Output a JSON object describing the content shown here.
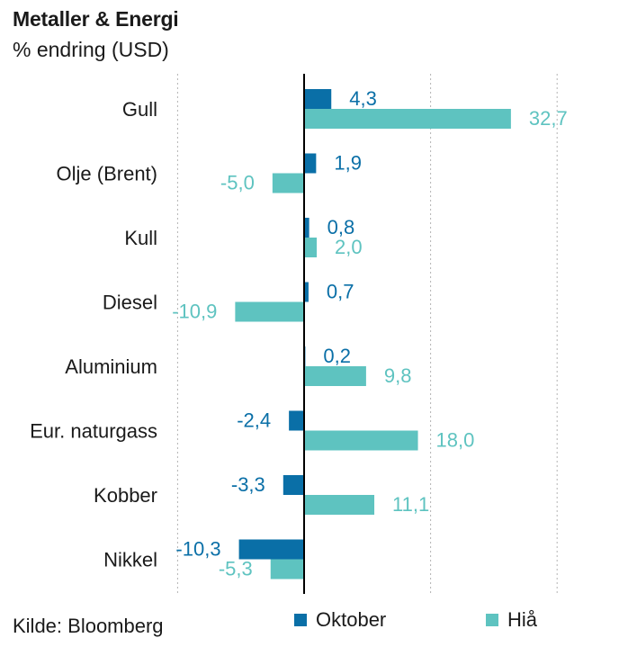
{
  "header": {
    "title": "Metaller & Energi",
    "subtitle": "% endring (USD)"
  },
  "footer": {
    "source": "Kilde: Bloomberg"
  },
  "colors": {
    "oktober": "#0a6fa7",
    "hia": "#5ec3c0",
    "axis": "#000000",
    "grid": "#b3b3b3"
  },
  "chart_data": {
    "type": "bar",
    "orientation": "horizontal",
    "title": "Metaller & Energi",
    "subtitle": "% endring (USD)",
    "categories": [
      "Gull",
      "Olje (Brent)",
      "Kull",
      "Diesel",
      "Aluminium",
      "Eur. naturgass",
      "Kobber",
      "Nikkel"
    ],
    "series": [
      {
        "name": "Oktober",
        "values": [
          4.3,
          1.9,
          0.8,
          0.7,
          0.2,
          -2.4,
          -3.3,
          -10.3
        ],
        "labels": [
          "4,3",
          "1,9",
          "0,8",
          "0,7",
          "0,2",
          "-2,4",
          "-3,3",
          "-10,3"
        ]
      },
      {
        "name": "Hiå",
        "values": [
          32.7,
          -5.0,
          2.0,
          -10.9,
          9.8,
          18.0,
          11.1,
          -5.3
        ],
        "labels": [
          "32,7",
          "-5,0",
          "2,0",
          "-10,9",
          "9,8",
          "18,0",
          "11,1",
          "-5,3"
        ]
      }
    ],
    "xlim": [
      -20,
      40
    ],
    "gridlines": [
      -20,
      20,
      40
    ],
    "grid": true,
    "legend_position": "bottom"
  }
}
